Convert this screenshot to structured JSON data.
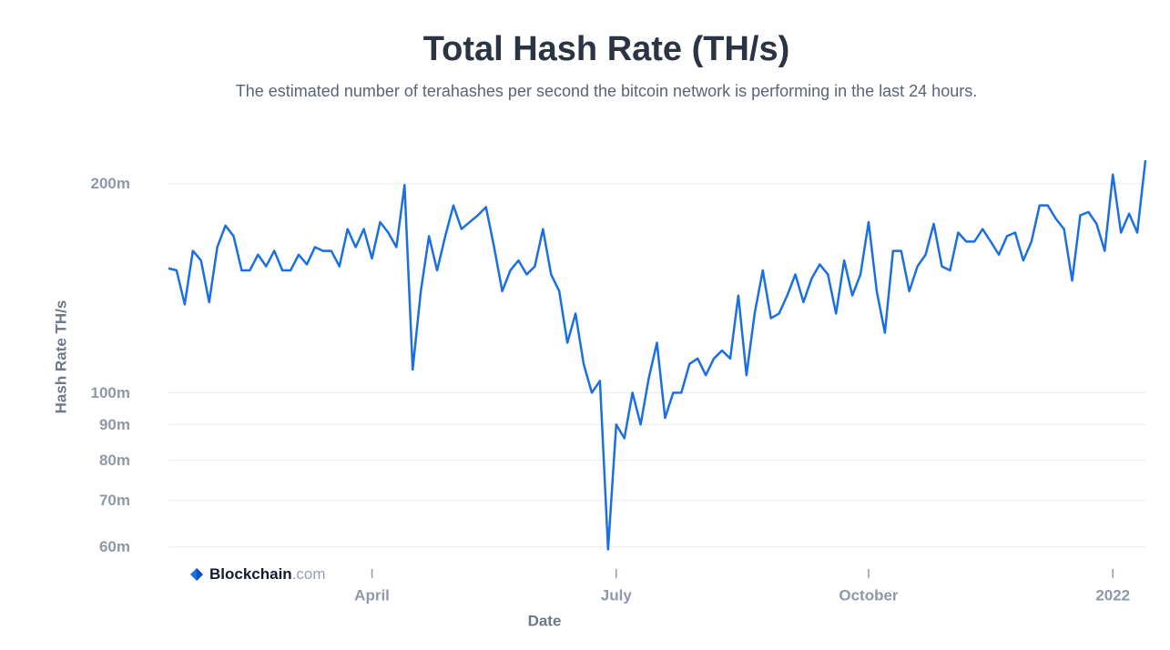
{
  "chart_data": {
    "type": "line",
    "title": "Total Hash Rate (TH/s)",
    "subtitle": "The estimated number of terahashes per second the bitcoin network is performing in the last 24 hours.",
    "x_label": "Date",
    "y_label": "Hash Rate TH/s",
    "watermark": {
      "name": "Blockchain",
      "suffix": ".com"
    },
    "yscale": "log",
    "grid": true,
    "ylim": [
      58000000,
      220000000
    ],
    "yticks": [
      {
        "value": 60000000,
        "label": "60m"
      },
      {
        "value": 70000000,
        "label": "70m"
      },
      {
        "value": 80000000,
        "label": "80m"
      },
      {
        "value": 90000000,
        "label": "90m"
      },
      {
        "value": 100000000,
        "label": "100m"
      },
      {
        "value": 200000000,
        "label": "200m"
      }
    ],
    "categories": [
      null,
      null,
      null,
      null,
      null,
      null,
      null,
      null,
      null,
      null,
      null,
      null,
      null,
      null,
      null,
      null,
      null,
      null,
      null,
      null,
      null,
      null,
      null,
      null,
      null,
      "April",
      null,
      null,
      null,
      null,
      null,
      null,
      null,
      null,
      null,
      null,
      null,
      null,
      null,
      null,
      null,
      null,
      null,
      null,
      null,
      null,
      null,
      null,
      null,
      null,
      null,
      null,
      null,
      null,
      null,
      "July",
      null,
      null,
      null,
      null,
      null,
      null,
      null,
      null,
      null,
      null,
      null,
      null,
      null,
      null,
      null,
      null,
      null,
      null,
      null,
      null,
      null,
      null,
      null,
      null,
      null,
      null,
      null,
      null,
      null,
      null,
      "October",
      null,
      null,
      null,
      null,
      null,
      null,
      null,
      null,
      null,
      null,
      null,
      null,
      null,
      null,
      null,
      null,
      null,
      null,
      null,
      null,
      null,
      null,
      null,
      null,
      null,
      null,
      null,
      null,
      null,
      "2022",
      null,
      null,
      null,
      null
    ],
    "series": [
      {
        "name": "Hash Rate",
        "color": "#1a6fe3",
        "values": [
          151000000,
          150000000,
          134000000,
          160000000,
          155000000,
          135000000,
          162000000,
          174000000,
          168000000,
          150000000,
          150000000,
          158000000,
          152000000,
          160000000,
          150000000,
          150000000,
          158000000,
          153000000,
          162000000,
          160000000,
          160000000,
          152000000,
          172000000,
          162000000,
          172000000,
          156000000,
          176000000,
          170000000,
          162000000,
          199000000,
          108000000,
          140000000,
          168000000,
          150000000,
          168000000,
          186000000,
          172000000,
          176000000,
          180000000,
          185000000,
          162000000,
          140000000,
          150000000,
          155000000,
          148000000,
          152000000,
          172000000,
          148000000,
          140000000,
          118000000,
          130000000,
          110000000,
          100000000,
          104000000,
          59500000,
          90000000,
          86000000,
          100000000,
          90000000,
          105000000,
          118000000,
          92000000,
          100000000,
          100000000,
          110000000,
          112000000,
          106000000,
          112000000,
          115000000,
          112000000,
          138000000,
          106000000,
          130000000,
          150000000,
          128000000,
          130000000,
          138000000,
          148000000,
          135000000,
          146000000,
          153000000,
          148000000,
          130000000,
          155000000,
          138000000,
          148000000,
          176000000,
          140000000,
          122000000,
          160000000,
          160000000,
          140000000,
          152000000,
          158000000,
          175000000,
          152000000,
          150000000,
          170000000,
          165000000,
          165000000,
          172000000,
          165000000,
          158000000,
          168000000,
          170000000,
          155000000,
          165000000,
          186000000,
          186000000,
          178000000,
          172000000,
          145000000,
          180000000,
          182000000,
          175000000,
          160000000,
          206000000,
          170000000,
          181000000,
          170000000,
          216000000
        ]
      }
    ]
  }
}
